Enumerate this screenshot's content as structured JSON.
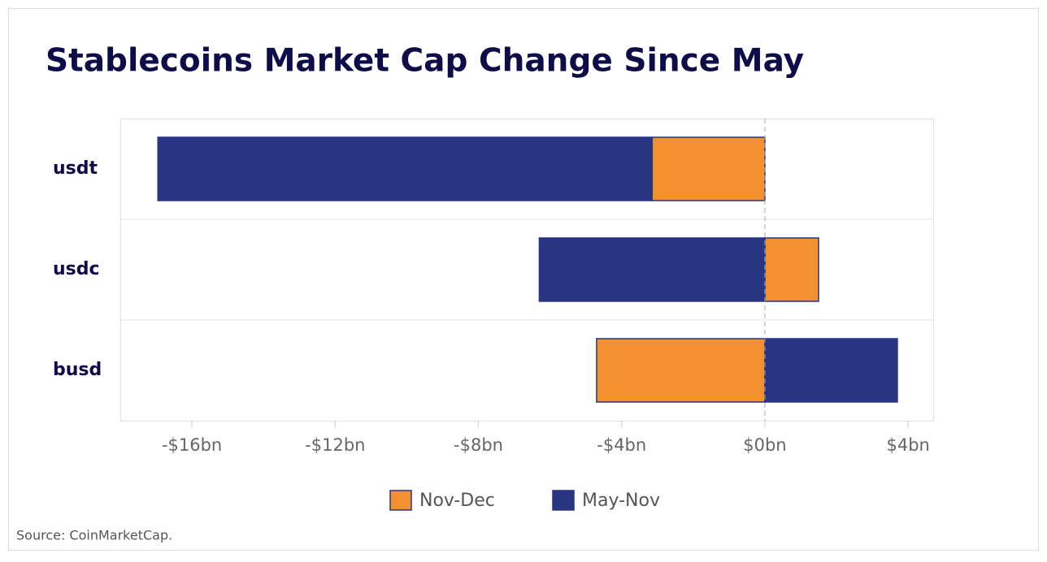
{
  "chart_data": {
    "type": "stacked-bar-horizontal",
    "title": "Stablecoins Market Cap Change Since May",
    "categories": [
      "usdt",
      "usdc",
      "busd"
    ],
    "series": [
      {
        "name": "Nov-Dec",
        "color": "#f39130",
        "values": [
          -3.15,
          1.5,
          -4.7
        ]
      },
      {
        "name": "May-Nov",
        "color": "#283583",
        "values": [
          -13.8,
          -6.3,
          3.7
        ]
      }
    ],
    "xlim": [
      -18,
      4.7
    ],
    "xticks": [
      {
        "value": -16,
        "label": "-$16bn"
      },
      {
        "value": -12,
        "label": "-$12bn"
      },
      {
        "value": -8,
        "label": "-$8bn"
      },
      {
        "value": -4,
        "label": "-$4bn"
      },
      {
        "value": 0,
        "label": "$0bn"
      },
      {
        "value": 4,
        "label": "$4bn"
      }
    ],
    "source": "Source: CoinMarketCap."
  }
}
